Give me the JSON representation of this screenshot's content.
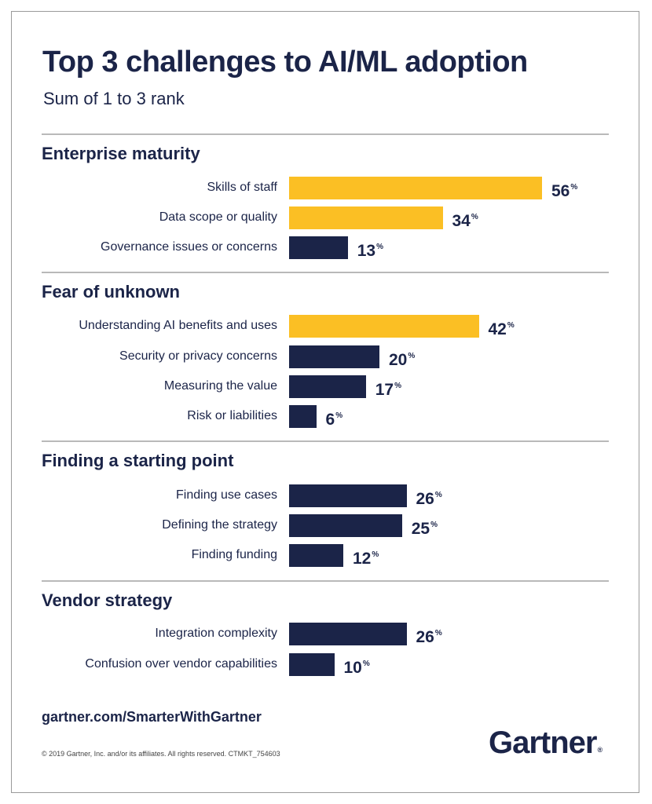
{
  "title": "Top 3 challenges to AI/ML adoption",
  "subtitle": "Sum of 1 to 3 rank",
  "footer": {
    "url": "gartner.com/SmarterWithGartner",
    "copyright": "© 2019 Gartner, Inc. and/or its affiliates. All rights reserved. CTMKT_754603",
    "logo": "Gartner"
  },
  "colors": {
    "highlight": "#fbbf24",
    "base": "#1b2448",
    "text": "#1b2448"
  },
  "chart_data": {
    "type": "bar",
    "orientation": "horizontal",
    "title": "Top 3 challenges to AI/ML adoption",
    "subtitle": "Sum of 1 to 3 rank",
    "unit": "%",
    "xlim": [
      0,
      56
    ],
    "groups": [
      {
        "name": "Enterprise maturity",
        "items": [
          {
            "label": "Skills of staff",
            "value": 56,
            "highlight": true
          },
          {
            "label": "Data scope or quality",
            "value": 34,
            "highlight": true
          },
          {
            "label": "Governance issues or concerns",
            "value": 13,
            "highlight": false
          }
        ]
      },
      {
        "name": "Fear of unknown",
        "items": [
          {
            "label": "Understanding AI benefits and uses",
            "value": 42,
            "highlight": true
          },
          {
            "label": "Security or privacy concerns",
            "value": 20,
            "highlight": false
          },
          {
            "label": "Measuring the value",
            "value": 17,
            "highlight": false
          },
          {
            "label": "Risk or liabilities",
            "value": 6,
            "highlight": false
          }
        ]
      },
      {
        "name": "Finding a starting point",
        "items": [
          {
            "label": "Finding use cases",
            "value": 26,
            "highlight": false
          },
          {
            "label": "Defining the strategy",
            "value": 25,
            "highlight": false
          },
          {
            "label": "Finding funding",
            "value": 12,
            "highlight": false
          }
        ]
      },
      {
        "name": "Vendor strategy",
        "items": [
          {
            "label": "Integration complexity",
            "value": 26,
            "highlight": false
          },
          {
            "label": "Confusion over vendor capabilities",
            "value": 10,
            "highlight": false
          }
        ]
      }
    ]
  }
}
